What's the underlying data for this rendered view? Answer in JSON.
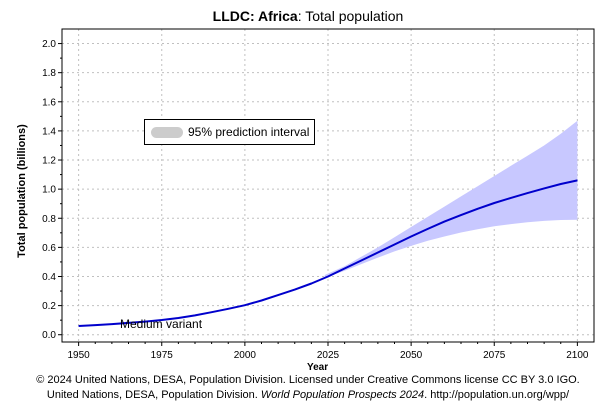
{
  "title": {
    "bold": "LLDC: Africa",
    "rest": ": Total population"
  },
  "footer": {
    "line1": "© 2024 United Nations, DESA, Population Division. Licensed under Creative Commons license CC BY 3.0 IGO.",
    "line2_a": "United Nations, DESA, Population Division. ",
    "line2_italic": "World Population Prospects 2024",
    "line2_b": ". http://population.un.org/wpp/"
  },
  "legend": {
    "label": "95% prediction interval"
  },
  "annotation": "Medium variant",
  "colors": {
    "line": "#0000cc",
    "band": "#c8c8ff",
    "legend_swatch": "#cccccc",
    "grid": "#c0c0c0"
  },
  "chart_data": {
    "type": "area",
    "title": "LLDC: Africa: Total population",
    "xlabel": "Year",
    "ylabel": "Total population (billions)",
    "xlim": [
      1945,
      2105
    ],
    "ylim": [
      -0.05,
      2.1
    ],
    "xticks": [
      1950,
      1975,
      2000,
      2025,
      2050,
      2075,
      2100
    ],
    "xtick_labels": [
      "1950",
      "1975",
      "2000",
      "2025",
      "2050",
      "2075",
      "2100"
    ],
    "yticks": [
      0.0,
      0.2,
      0.4,
      0.6,
      0.8,
      1.0,
      1.2,
      1.4,
      1.6,
      1.8,
      2.0
    ],
    "ytick_labels": [
      "0.0",
      "0.2",
      "0.4",
      "0.6",
      "0.8",
      "1.0",
      "1.2",
      "1.4",
      "1.6",
      "1.8",
      "2.0"
    ],
    "grid": true,
    "legend_position": "top-left",
    "series": [
      {
        "name": "Medium variant",
        "x": [
          1950,
          1955,
          1960,
          1965,
          1970,
          1975,
          1980,
          1985,
          1990,
          1995,
          2000,
          2005,
          2010,
          2015,
          2020,
          2025,
          2030,
          2035,
          2040,
          2045,
          2050,
          2055,
          2060,
          2065,
          2070,
          2075,
          2080,
          2085,
          2090,
          2095,
          2100
        ],
        "values": [
          0.06,
          0.066,
          0.073,
          0.081,
          0.09,
          0.101,
          0.115,
          0.133,
          0.155,
          0.178,
          0.203,
          0.235,
          0.272,
          0.31,
          0.352,
          0.4,
          0.455,
          0.51,
          0.565,
          0.62,
          0.675,
          0.727,
          0.777,
          0.822,
          0.865,
          0.905,
          0.94,
          0.973,
          1.005,
          1.035,
          1.06
        ]
      },
      {
        "name": "95% prediction interval",
        "x": [
          2024,
          2030,
          2035,
          2040,
          2045,
          2050,
          2055,
          2060,
          2065,
          2070,
          2075,
          2080,
          2085,
          2090,
          2095,
          2100
        ],
        "lower": [
          0.39,
          0.44,
          0.485,
          0.53,
          0.572,
          0.61,
          0.645,
          0.675,
          0.702,
          0.725,
          0.745,
          0.76,
          0.772,
          0.782,
          0.788,
          0.79
        ],
        "upper": [
          0.41,
          0.47,
          0.535,
          0.6,
          0.67,
          0.74,
          0.81,
          0.88,
          0.95,
          1.02,
          1.09,
          1.16,
          1.23,
          1.3,
          1.38,
          1.47
        ]
      }
    ]
  }
}
